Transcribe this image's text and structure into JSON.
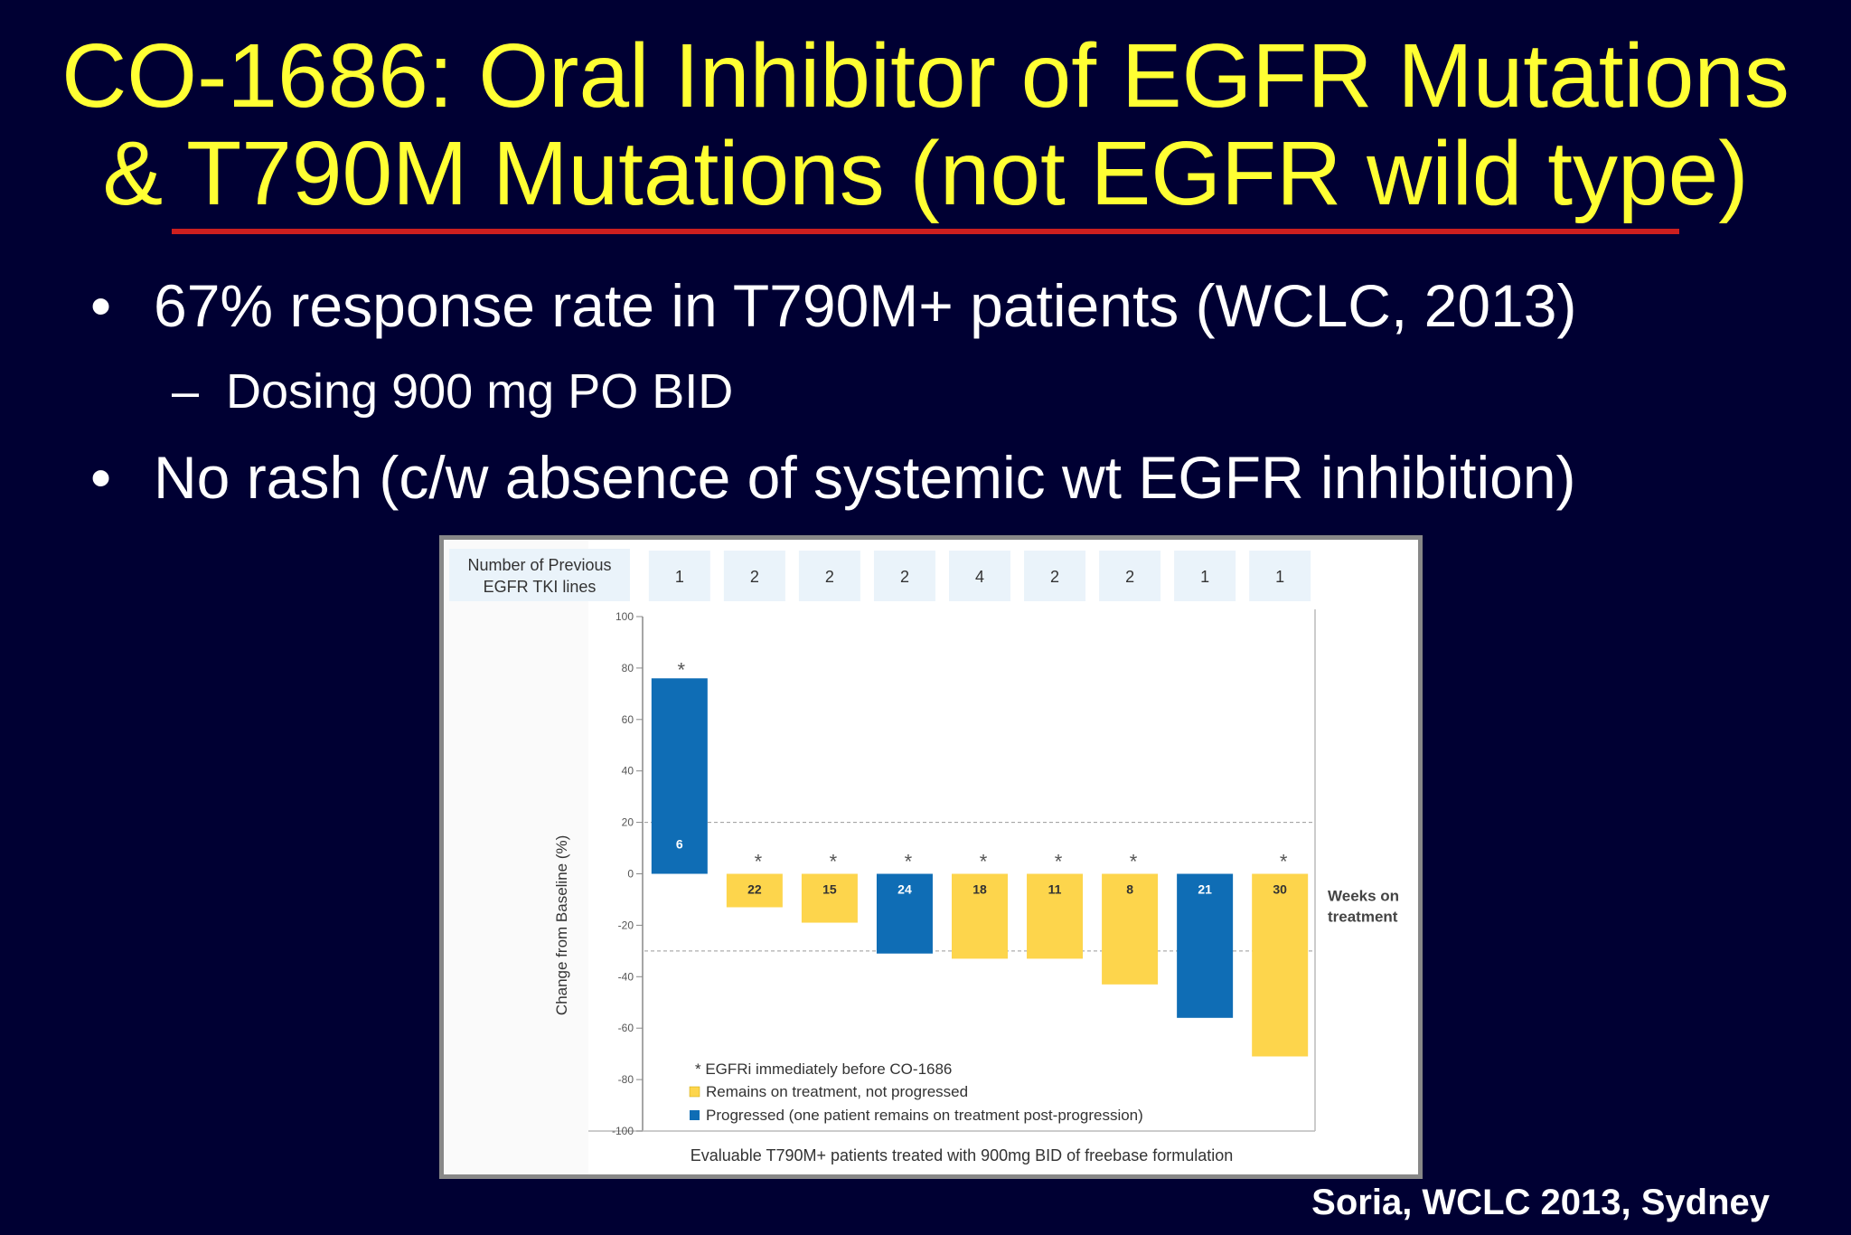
{
  "slide": {
    "title_line1": "CO-1686: Oral Inhibitor of EGFR Mutations",
    "title_line2": "& T790M Mutations (not EGFR wild type)",
    "bullets": [
      "67% response rate in T790M+ patients (WCLC, 2013)",
      "No rash (c/w absence of systemic wt EGFR inhibition)"
    ],
    "sub_bullet": "Dosing 900 mg PO BID",
    "bullet_marker": "•",
    "sub_marker": "–",
    "citation": "Soria, WCLC 2013, Sydney",
    "colors": {
      "background": "#000033",
      "title": "#ffff33",
      "rule": "#cc1f1f",
      "text": "#ffffff"
    }
  },
  "chart_data": {
    "type": "bar",
    "ylabel": "Change from Baseline (%)",
    "xlabel": "Evaluable T790M+ patients treated with 900mg BID of freebase formulation",
    "ylim": [
      -100,
      100
    ],
    "yticks": [
      100,
      80,
      60,
      40,
      20,
      0,
      -20,
      -40,
      -60,
      -80,
      -100
    ],
    "reference_lines": [
      20,
      -30
    ],
    "prior_lines_header_line1": "Number of Previous",
    "prior_lines_header_line2": "EGFR TKI lines",
    "weeks_label_line1": "Weeks on",
    "weeks_label_line2": "treatment",
    "prior_tki_lines": [
      "1",
      "2",
      "2",
      "2",
      "4",
      "2",
      "2",
      "1",
      "1"
    ],
    "values": [
      76,
      -13,
      -19,
      -31,
      -33,
      -33,
      -43,
      -56,
      -71
    ],
    "weeks_on_treatment": [
      "6",
      "22",
      "15",
      "24",
      "18",
      "11",
      "8",
      "21",
      "30"
    ],
    "status": [
      "progressed",
      "remains",
      "remains",
      "progressed",
      "remains",
      "remains",
      "remains",
      "progressed",
      "remains"
    ],
    "egfri_immediately_before": [
      true,
      true,
      true,
      true,
      true,
      true,
      true,
      false,
      true
    ],
    "asterisk_symbol": "*",
    "legend": {
      "asterisk": "* EGFRi immediately before CO-1686",
      "remains": "Remains on treatment, not progressed",
      "progressed": "Progressed (one patient remains on treatment post-progression)"
    },
    "colors": {
      "progressed": "#0f6db5",
      "remains": "#fdd54c",
      "header_box": "#eaf3fa"
    },
    "grid": false,
    "legend_position": "bottom-left"
  }
}
